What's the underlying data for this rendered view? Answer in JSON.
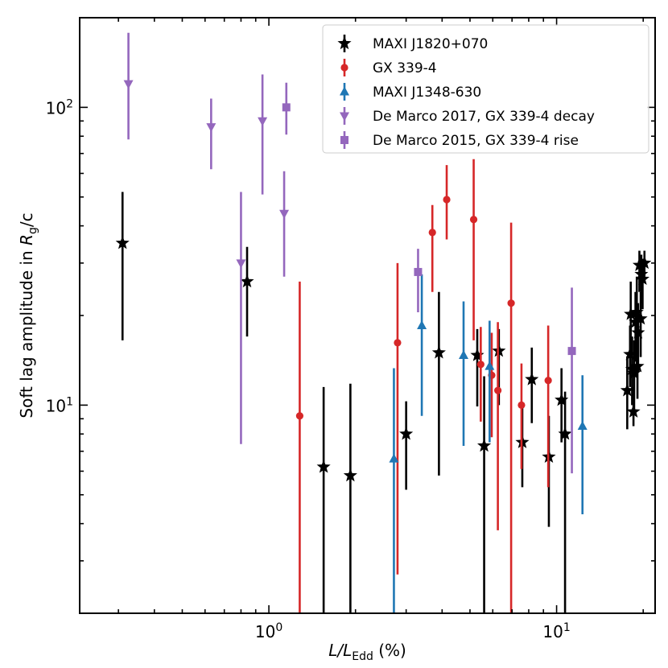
{
  "chart_data": {
    "type": "scatter",
    "xscale": "log",
    "yscale": "log",
    "xlim": [
      0.22,
      22
    ],
    "ylim": [
      2.0,
      200
    ],
    "xlabel": {
      "main": "L/L",
      "sub": "Edd",
      "suffix": "(%)"
    },
    "ylabel": {
      "prefix": "Soft lag amplitude in ",
      "var": "R",
      "sub": "g",
      "suffix": "/c"
    },
    "x_ticks": [
      {
        "value": 1,
        "base": "10",
        "exp": "0"
      },
      {
        "value": 10,
        "base": "10",
        "exp": "1"
      }
    ],
    "y_ticks": [
      {
        "value": 10,
        "base": "10",
        "exp": "1"
      },
      {
        "value": 100,
        "base": "10",
        "exp": "2"
      }
    ],
    "grid": false,
    "legend_position": "top-right",
    "series": [
      {
        "name": "MAXI J1820+070",
        "marker": "star",
        "color": "#000000",
        "points": [
          {
            "x": 0.31,
            "y": 35,
            "ylo": 16.5,
            "yhi": 52
          },
          {
            "x": 0.84,
            "y": 26,
            "ylo": 17,
            "yhi": 34
          },
          {
            "x": 1.55,
            "y": 6.2,
            "ylo": 2.0,
            "yhi": 11.5
          },
          {
            "x": 1.92,
            "y": 5.8,
            "ylo": 2.0,
            "yhi": 11.8
          },
          {
            "x": 3.0,
            "y": 8.0,
            "ylo": 5.2,
            "yhi": 10.3
          },
          {
            "x": 3.9,
            "y": 15,
            "ylo": 5.8,
            "yhi": 24
          },
          {
            "x": 5.3,
            "y": 14.7,
            "ylo": 9.9,
            "yhi": 18
          },
          {
            "x": 5.6,
            "y": 7.3,
            "ylo": 2.0,
            "yhi": 12.5
          },
          {
            "x": 6.3,
            "y": 15.2,
            "ylo": 10,
            "yhi": 18
          },
          {
            "x": 7.6,
            "y": 7.5,
            "ylo": 5.3,
            "yhi": 9.8
          },
          {
            "x": 8.2,
            "y": 12.2,
            "ylo": 8.7,
            "yhi": 15.6
          },
          {
            "x": 9.4,
            "y": 6.7,
            "ylo": 3.9,
            "yhi": 9.2
          },
          {
            "x": 10.4,
            "y": 10.4,
            "ylo": 7.5,
            "yhi": 13.3
          },
          {
            "x": 10.7,
            "y": 8.0,
            "ylo": 2.0,
            "yhi": 11.1
          },
          {
            "x": 17.6,
            "y": 11.2,
            "ylo": 8.3,
            "yhi": 14.6
          },
          {
            "x": 18.0,
            "y": 14.8,
            "ylo": 11.5,
            "yhi": 18.5
          },
          {
            "x": 18.1,
            "y": 20.2,
            "ylo": 14.5,
            "yhi": 26
          },
          {
            "x": 18.3,
            "y": 13.2,
            "ylo": 10.0,
            "yhi": 17
          },
          {
            "x": 18.5,
            "y": 9.5,
            "ylo": 8.5,
            "yhi": 11.5
          },
          {
            "x": 18.6,
            "y": 12.8,
            "ylo": 9.5,
            "yhi": 16.5
          },
          {
            "x": 18.8,
            "y": 19.0,
            "ylo": 14,
            "yhi": 24
          },
          {
            "x": 19.0,
            "y": 20.5,
            "ylo": 13,
            "yhi": 27
          },
          {
            "x": 19.1,
            "y": 13.5,
            "ylo": 10.5,
            "yhi": 17
          },
          {
            "x": 19.2,
            "y": 17.5,
            "ylo": 13,
            "yhi": 22
          },
          {
            "x": 19.4,
            "y": 29.5,
            "ylo": 24,
            "yhi": 33
          },
          {
            "x": 19.6,
            "y": 19.5,
            "ylo": 14.5,
            "yhi": 24
          },
          {
            "x": 19.7,
            "y": 27.5,
            "ylo": 22,
            "yhi": 32
          },
          {
            "x": 19.9,
            "y": 26.5,
            "ylo": 21,
            "yhi": 31
          },
          {
            "x": 20.2,
            "y": 30.0,
            "ylo": 27,
            "yhi": 33
          }
        ]
      },
      {
        "name": "GX 339-4",
        "marker": "circle",
        "color": "#d62728",
        "points": [
          {
            "x": 1.28,
            "y": 9.2,
            "ylo": 2.0,
            "yhi": 26
          },
          {
            "x": 2.8,
            "y": 16.2,
            "ylo": 2.7,
            "yhi": 30
          },
          {
            "x": 3.7,
            "y": 38,
            "ylo": 24,
            "yhi": 47
          },
          {
            "x": 4.15,
            "y": 49,
            "ylo": 36,
            "yhi": 64
          },
          {
            "x": 5.15,
            "y": 42,
            "ylo": 16.5,
            "yhi": 67
          },
          {
            "x": 5.45,
            "y": 13.7,
            "ylo": 8.8,
            "yhi": 18.3
          },
          {
            "x": 5.95,
            "y": 12.6,
            "ylo": 7.8,
            "yhi": 17.5
          },
          {
            "x": 6.25,
            "y": 11.2,
            "ylo": 3.8,
            "yhi": 19
          },
          {
            "x": 6.95,
            "y": 22,
            "ylo": 2.0,
            "yhi": 41
          },
          {
            "x": 7.55,
            "y": 10,
            "ylo": 6.1,
            "yhi": 13.8
          },
          {
            "x": 9.35,
            "y": 12.1,
            "ylo": 5.3,
            "yhi": 18.5
          }
        ]
      },
      {
        "name": "MAXI J1348-630",
        "marker": "triangle-up",
        "color": "#1f77b4",
        "points": [
          {
            "x": 2.72,
            "y": 6.6,
            "ylo": 2.0,
            "yhi": 13.3
          },
          {
            "x": 3.4,
            "y": 18.5,
            "ylo": 9.2,
            "yhi": 27.5
          },
          {
            "x": 4.75,
            "y": 14.7,
            "ylo": 7.3,
            "yhi": 22.3
          },
          {
            "x": 5.85,
            "y": 13.5,
            "ylo": 7.5,
            "yhi": 19.2
          },
          {
            "x": 12.3,
            "y": 8.5,
            "ylo": 4.3,
            "yhi": 12.6
          }
        ]
      },
      {
        "name": "De Marco 2017, GX 339-4 decay",
        "marker": "triangle-down",
        "color": "#9467bd",
        "points": [
          {
            "x": 0.325,
            "y": 120,
            "ylo": 78,
            "yhi": 178
          },
          {
            "x": 0.63,
            "y": 86,
            "ylo": 62,
            "yhi": 107
          },
          {
            "x": 0.8,
            "y": 30,
            "ylo": 7.4,
            "yhi": 52
          },
          {
            "x": 0.95,
            "y": 90,
            "ylo": 51,
            "yhi": 129
          },
          {
            "x": 1.13,
            "y": 44,
            "ylo": 27,
            "yhi": 61
          }
        ]
      },
      {
        "name": "De Marco 2015, GX 339-4 rise",
        "marker": "square",
        "color": "#9467bd",
        "points": [
          {
            "x": 1.15,
            "y": 100,
            "ylo": 81,
            "yhi": 121
          },
          {
            "x": 3.3,
            "y": 28,
            "ylo": 20.5,
            "yhi": 33.5
          },
          {
            "x": 11.3,
            "y": 15.2,
            "ylo": 5.9,
            "yhi": 24.8
          }
        ]
      }
    ]
  }
}
